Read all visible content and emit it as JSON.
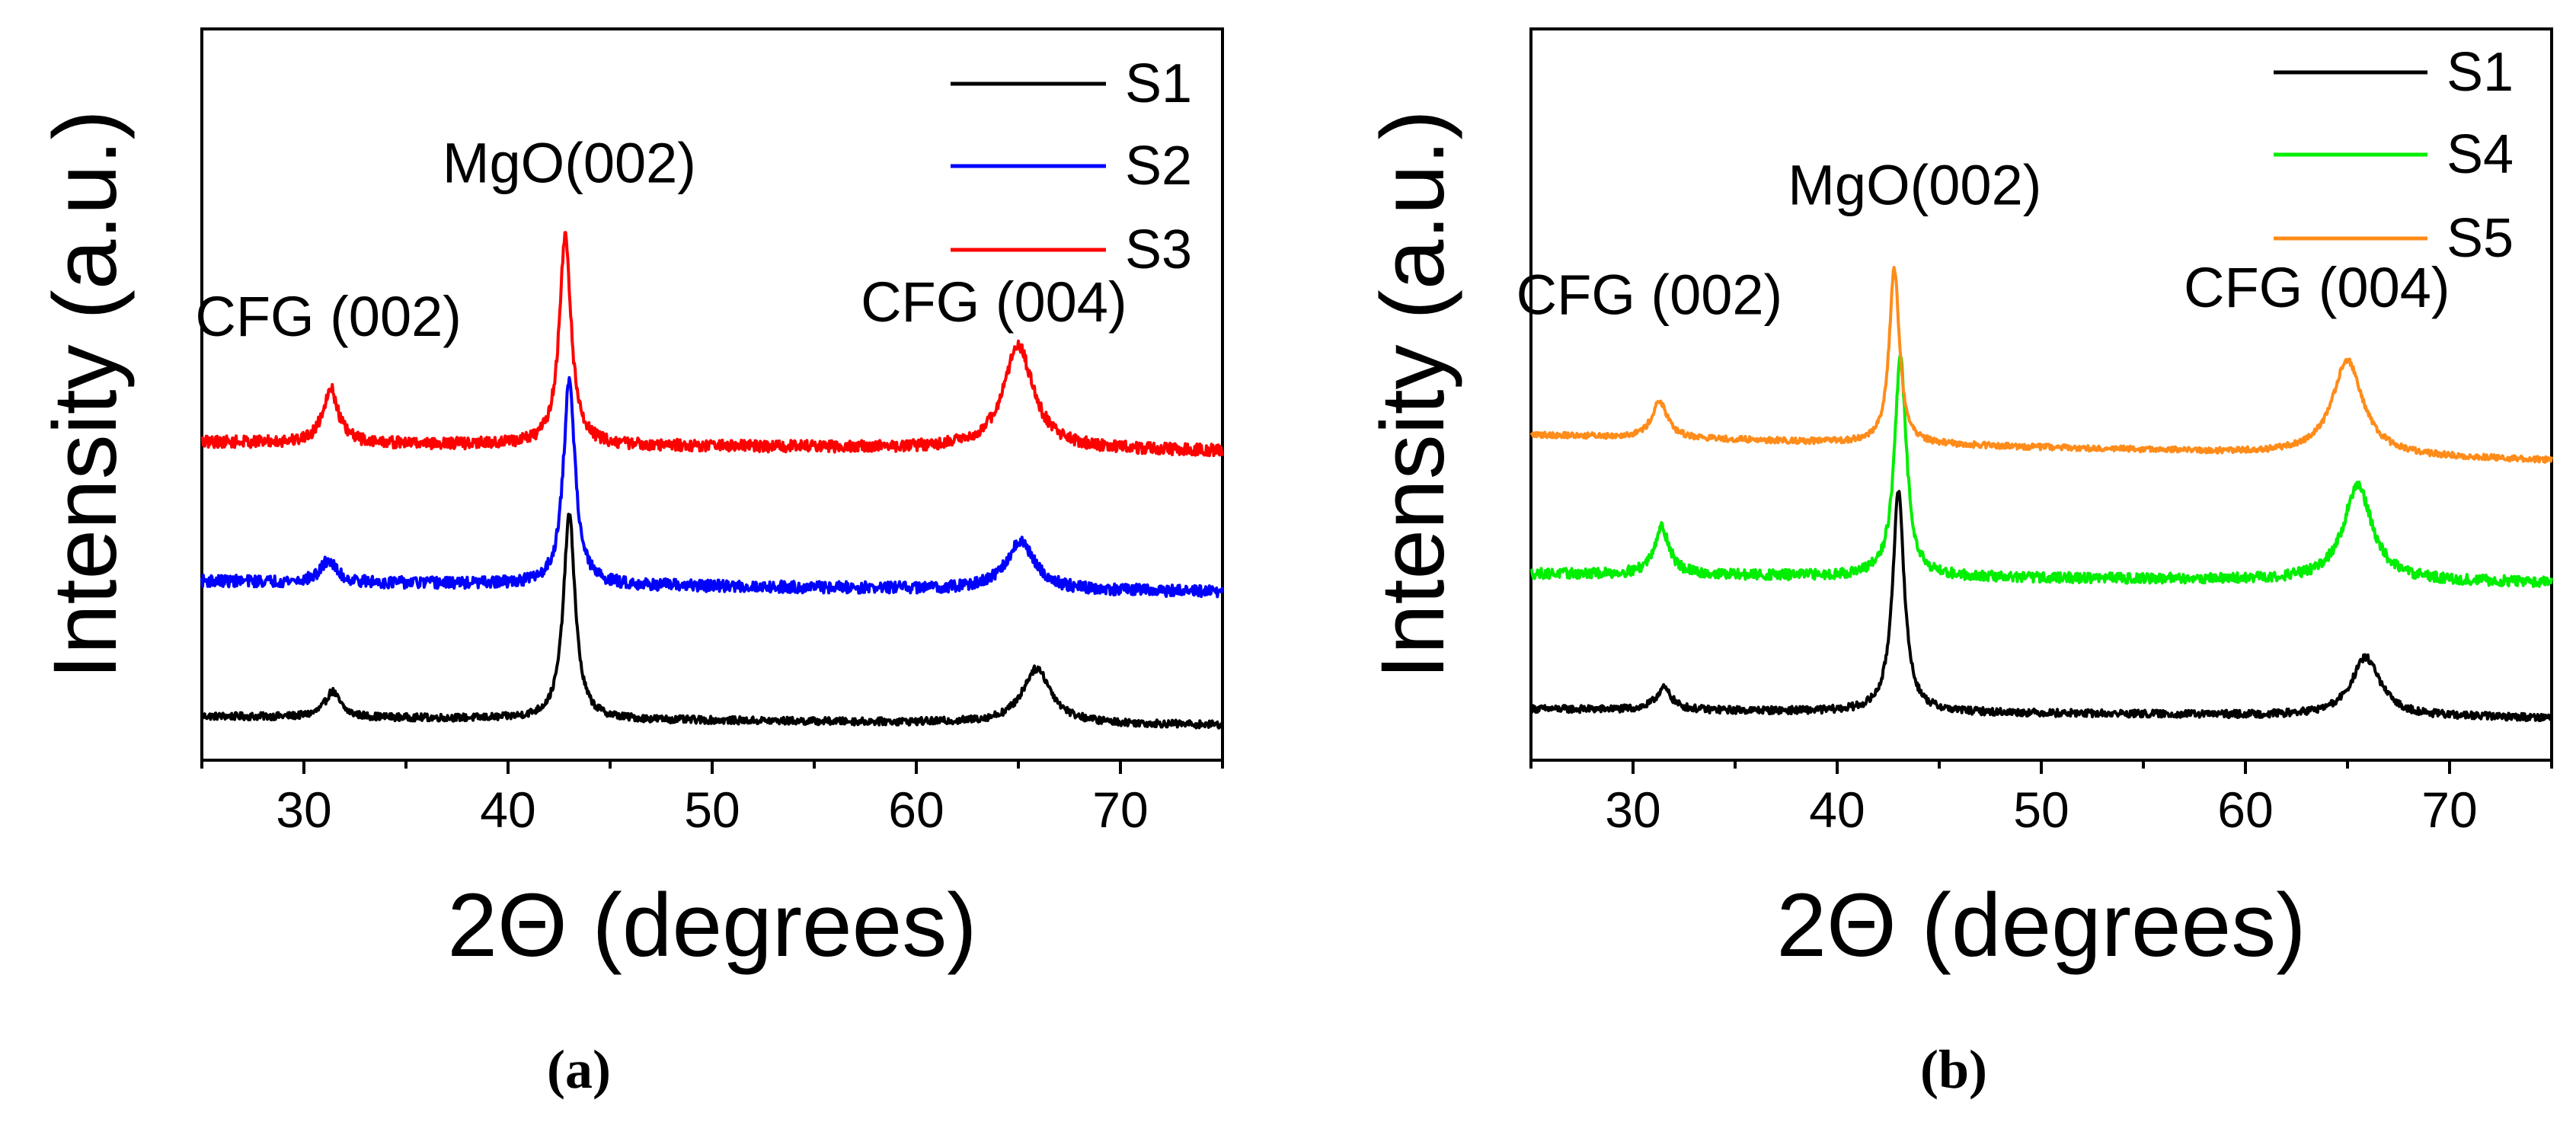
{
  "chart_data": [
    {
      "panel": "a",
      "panel_label": "(a)",
      "type": "line",
      "title": "",
      "xlabel": "2Θ (degrees)",
      "ylabel": "Intensity (a.u.)",
      "xlim": [
        25,
        75
      ],
      "ylim": [
        0,
        1
      ],
      "xticks": [
        30,
        40,
        50,
        60,
        70
      ],
      "xtick_labels": [
        "30",
        "40",
        "50",
        "60",
        "70"
      ],
      "grid": false,
      "legend_position": "top-right",
      "series": [
        {
          "name": "S1",
          "color": "#000000",
          "baseline": 0.06,
          "slope": -0.012,
          "noise": 0.005,
          "peaks": [
            {
              "x": 31.4,
              "h": 0.035,
              "w": 0.45
            },
            {
              "x": 43.0,
              "h": 0.28,
              "w": 0.35
            },
            {
              "x": 65.9,
              "h": 0.075,
              "w": 0.85
            }
          ]
        },
        {
          "name": "S2",
          "color": "#0000ff",
          "baseline": 0.245,
          "slope": -0.015,
          "noise": 0.008,
          "peaks": [
            {
              "x": 31.2,
              "h": 0.03,
              "w": 0.45
            },
            {
              "x": 43.0,
              "h": 0.28,
              "w": 0.35
            },
            {
              "x": 65.1,
              "h": 0.065,
              "w": 0.85
            }
          ]
        },
        {
          "name": "S3",
          "color": "#ff0000",
          "baseline": 0.435,
          "slope": -0.012,
          "noise": 0.008,
          "peaks": [
            {
              "x": 31.3,
              "h": 0.075,
              "w": 0.45
            },
            {
              "x": 42.8,
              "h": 0.285,
              "w": 0.35
            },
            {
              "x": 65.0,
              "h": 0.14,
              "w": 0.9
            }
          ]
        }
      ],
      "annotations": [
        {
          "text": "CFG (002)",
          "x": 31.2,
          "y": 0.58
        },
        {
          "text": "MgO(002)",
          "x": 43.0,
          "y": 0.79
        },
        {
          "text": "CFG (004)",
          "x": 63.8,
          "y": 0.6
        }
      ]
    },
    {
      "panel": "b",
      "panel_label": "(b)",
      "type": "line",
      "title": "",
      "xlabel": "2Θ (degrees)",
      "ylabel": "Intensity (a.u.)",
      "xlim": [
        25,
        75
      ],
      "ylim": [
        0,
        1
      ],
      "xticks": [
        30,
        40,
        50,
        60,
        70
      ],
      "xtick_labels": [
        "30",
        "40",
        "50",
        "60",
        "70"
      ],
      "grid": false,
      "legend_position": "top-right",
      "series": [
        {
          "name": "S1",
          "color": "#000000",
          "baseline": 0.07,
          "slope": -0.012,
          "noise": 0.005,
          "peaks": [
            {
              "x": 31.5,
              "h": 0.03,
              "w": 0.45
            },
            {
              "x": 43.0,
              "h": 0.3,
              "w": 0.35
            },
            {
              "x": 65.9,
              "h": 0.08,
              "w": 0.85
            }
          ]
        },
        {
          "name": "S4",
          "color": "#00ee00",
          "baseline": 0.255,
          "slope": -0.012,
          "noise": 0.007,
          "peaks": [
            {
              "x": 31.4,
              "h": 0.065,
              "w": 0.45
            },
            {
              "x": 43.1,
              "h": 0.3,
              "w": 0.35
            },
            {
              "x": 65.5,
              "h": 0.13,
              "w": 0.85
            }
          ]
        },
        {
          "name": "S5",
          "color": "#ff8c1a",
          "baseline": 0.445,
          "slope": -0.035,
          "noise": 0.004,
          "peaks": [
            {
              "x": 31.3,
              "h": 0.05,
              "w": 0.45
            },
            {
              "x": 42.8,
              "h": 0.24,
              "w": 0.3
            },
            {
              "x": 65.0,
              "h": 0.13,
              "w": 0.9
            }
          ]
        }
      ],
      "annotations": [
        {
          "text": "CFG (002)",
          "x": 30.8,
          "y": 0.61
        },
        {
          "text": "MgO(002)",
          "x": 43.8,
          "y": 0.76
        },
        {
          "text": "CFG (004)",
          "x": 63.5,
          "y": 0.62
        }
      ]
    }
  ]
}
